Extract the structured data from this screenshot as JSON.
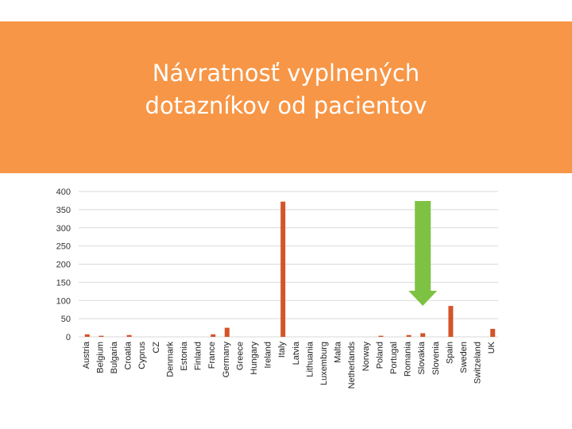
{
  "slide": {
    "title_line1": "Návratnosť vyplnených",
    "title_line2": "dotazníkov od pacientov"
  },
  "colors": {
    "banner": "#F79646",
    "bar": "#D4542A",
    "arrow": "#7DC242",
    "grid": "#D9D9D9"
  },
  "chart_data": {
    "type": "bar",
    "title": "",
    "xlabel": "",
    "ylabel": "",
    "ylim": [
      0,
      400
    ],
    "yticks": [
      0,
      50,
      100,
      150,
      200,
      250,
      300,
      350,
      400
    ],
    "grid": true,
    "categories": [
      "Austria",
      "Belgium",
      "Bulgaria",
      "Croatia",
      "Cyprus",
      "CZ",
      "Denmark",
      "Estonia",
      "Finland",
      "France",
      "Germany",
      "Greece",
      "Hungary",
      "Ireland",
      "Italy",
      "Latvia",
      "Lithuania",
      "Luxemburg",
      "Malta",
      "Netherlands",
      "Norway",
      "Poland",
      "Portugal",
      "Romania",
      "Slovakia",
      "Slovenia",
      "Spain",
      "Sweden",
      "Switzeland",
      "UK"
    ],
    "values": [
      7,
      3,
      0,
      5,
      0,
      0,
      0,
      0,
      0,
      7,
      25,
      0,
      0,
      0,
      372,
      0,
      0,
      0,
      0,
      0,
      0,
      3,
      0,
      5,
      10,
      0,
      85,
      0,
      0,
      22
    ],
    "highlight": {
      "category": "Slovakia",
      "marker": "arrow",
      "direction": "down"
    }
  }
}
